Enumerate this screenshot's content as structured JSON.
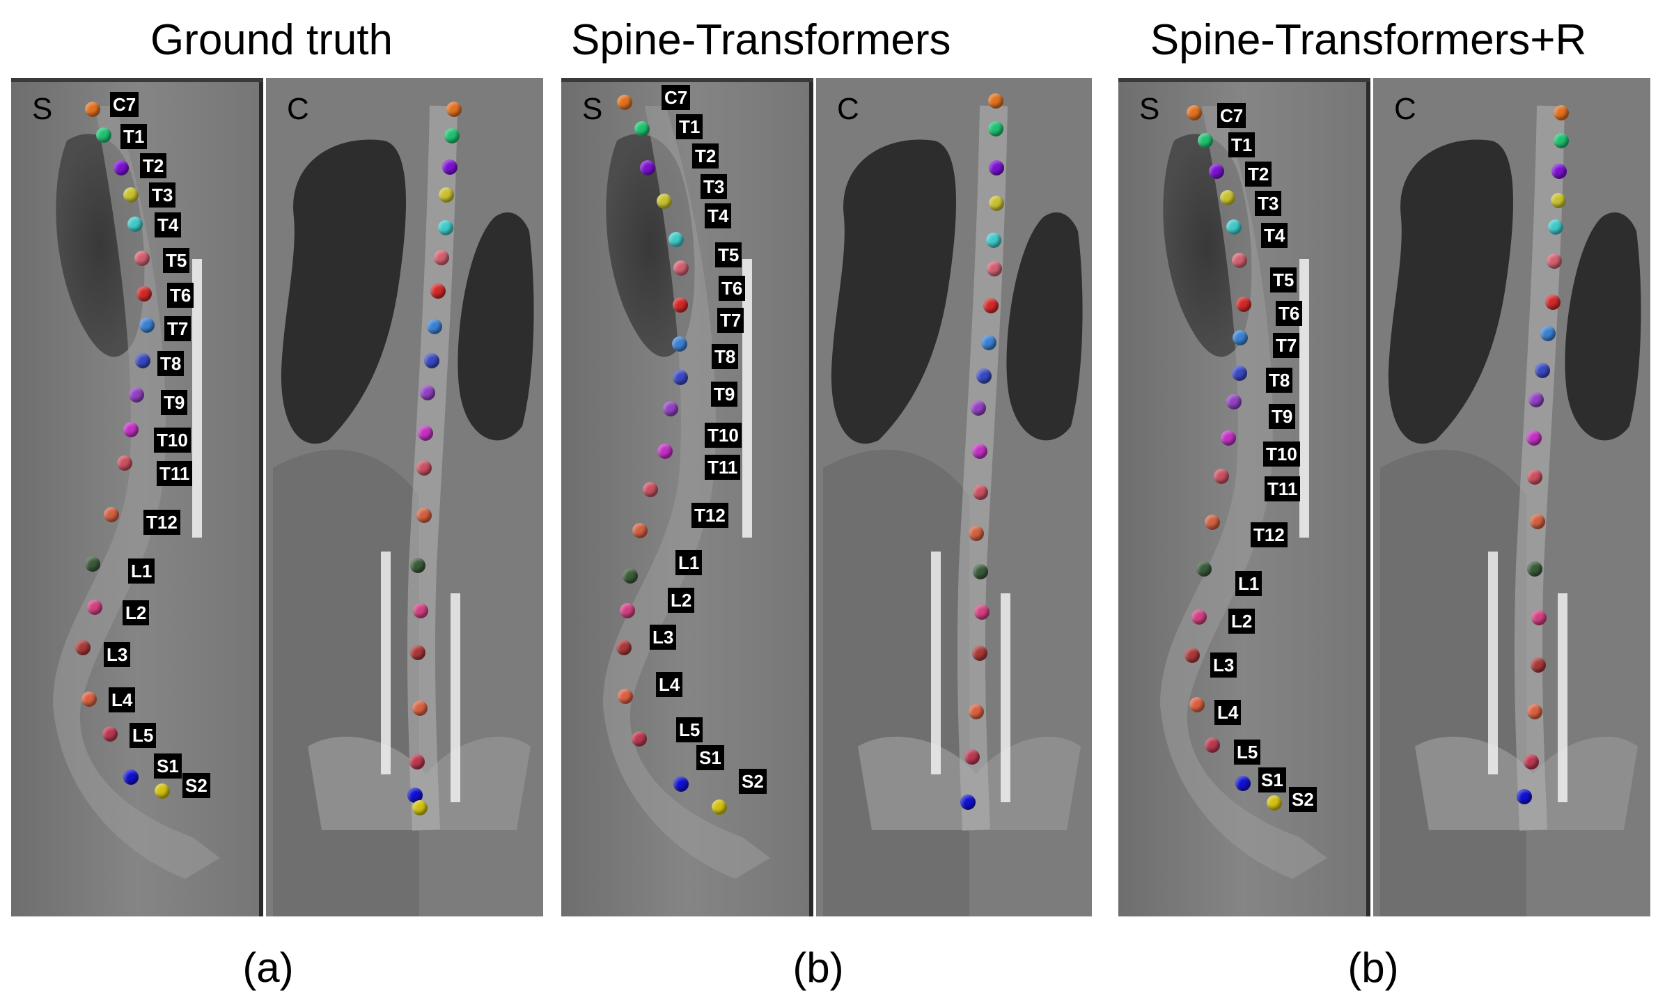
{
  "titles": [
    "Ground truth",
    "Spine-Transformers",
    "Spine-Transformers+R"
  ],
  "captions": [
    "(a)",
    "(b)",
    "(b)"
  ],
  "view_letters": {
    "sagittal": "S",
    "coronal": "C"
  },
  "vertebra_colors": {
    "C7": "#e07020",
    "T1": "#20c070",
    "T2": "#7a10d0",
    "T3": "#c8c030",
    "T4": "#40c8c8",
    "T5": "#d06070",
    "T6": "#d02828",
    "T7": "#3b80d0",
    "T8": "#3848c0",
    "T9": "#9040c0",
    "T10": "#c030c0",
    "T11": "#c85060",
    "T12": "#d06040",
    "L1": "#3a5a3a",
    "L2": "#d04080",
    "L3": "#a83838",
    "L4": "#d86040",
    "L5": "#b83850",
    "S1": "#1010d0",
    "S2": "#d0c010"
  },
  "sagittal_labels": [
    [
      "C7",
      "T1",
      "T2",
      "T3",
      "T4",
      "T5",
      "T6",
      "T7",
      "T8",
      "T9",
      "T10",
      "T11",
      "T12",
      "L1",
      "L2",
      "L3",
      "L4",
      "L5",
      "S1",
      "S2"
    ],
    [
      "C7",
      "T1",
      "T2",
      "T3",
      "T4",
      "T5",
      "T6",
      "T7",
      "T8",
      "T9",
      "T10",
      "T11",
      "T12",
      "L1",
      "L2",
      "L3",
      "L4",
      "L5",
      "S1",
      "S2"
    ],
    [
      "C7",
      "T1",
      "T2",
      "T3",
      "T4",
      "T5",
      "T6",
      "T7",
      "T8",
      "T9",
      "T10",
      "T11",
      "T12",
      "L1",
      "L2",
      "L3",
      "L4",
      "L5",
      "S1",
      "S2"
    ]
  ]
}
